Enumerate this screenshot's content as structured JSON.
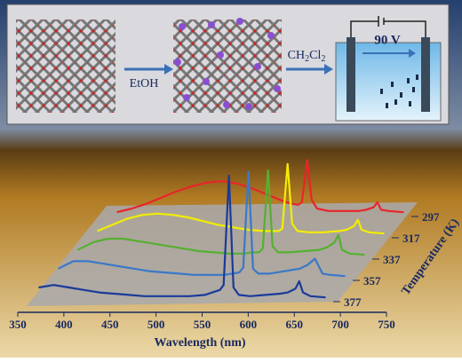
{
  "scheme": {
    "step1": "EtOH",
    "step2": [
      "CH",
      "2",
      "Cl",
      "2"
    ],
    "voltage": "90 V"
  },
  "chart_data": {
    "type": "waterfall-line",
    "x_label": "Wavelength (nm)",
    "z_label": "Temperature (K)",
    "xlim": [
      350,
      750
    ],
    "xticks": [
      350,
      400,
      450,
      500,
      550,
      600,
      650,
      700,
      750
    ],
    "x": [
      360,
      380,
      400,
      420,
      440,
      460,
      480,
      500,
      520,
      540,
      560,
      580,
      590,
      600,
      605,
      612,
      618,
      625,
      640,
      660,
      680,
      690,
      700,
      705,
      710,
      720,
      740
    ],
    "series": [
      {
        "name": "297",
        "color": "#e8252a",
        "values": [
          2,
          5,
          9,
          14,
          19,
          23,
          26,
          27,
          25,
          21,
          16,
          11,
          9,
          8,
          10,
          44,
          12,
          5,
          3,
          3,
          3,
          4,
          6,
          10,
          4,
          3,
          2
        ]
      },
      {
        "name": "317",
        "color": "#f2ee00",
        "values": [
          4,
          9,
          14,
          17,
          18,
          17,
          15,
          12,
          9,
          7,
          5,
          4,
          4,
          4,
          6,
          58,
          10,
          4,
          3,
          3,
          4,
          5,
          8,
          13,
          5,
          3,
          2
        ]
      },
      {
        "name": "337",
        "color": "#55b030",
        "values": [
          6,
          12,
          15,
          15,
          13,
          11,
          9,
          7,
          5,
          4,
          3,
          3,
          4,
          4,
          7,
          70,
          9,
          4,
          4,
          5,
          6,
          8,
          12,
          18,
          6,
          3,
          2
        ]
      },
      {
        "name": "357",
        "color": "#3a78c8",
        "values": [
          8,
          14,
          14,
          12,
          10,
          8,
          6,
          5,
          4,
          3,
          3,
          3,
          4,
          5,
          9,
          86,
          8,
          4,
          4,
          6,
          8,
          11,
          16,
          10,
          4,
          3,
          2
        ]
      },
      {
        "name": "377",
        "color": "#1a3a9a",
        "values": [
          10,
          12,
          10,
          8,
          6,
          5,
          4,
          3,
          3,
          3,
          3,
          4,
          6,
          8,
          12,
          100,
          10,
          4,
          3,
          4,
          5,
          6,
          9,
          15,
          6,
          3,
          2
        ]
      }
    ]
  }
}
